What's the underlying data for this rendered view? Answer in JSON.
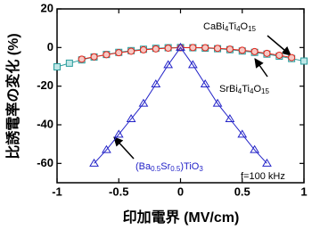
{
  "chart_data": {
    "type": "line",
    "xlabel": "印加電界 (MV/cm)",
    "ylabel": "比誘電率の変化 (%)",
    "xlim": [
      -1,
      1
    ],
    "xticks": [
      -1,
      -0.5,
      0,
      0.5,
      1
    ],
    "ylim": [
      -70,
      20
    ],
    "yticks": [
      -60,
      -40,
      -20,
      0,
      20
    ],
    "series": [
      {
        "name": "CaBi4Ti4O15",
        "color": "#2a9d9d",
        "marker": "square",
        "x": [
          -1,
          -0.9,
          -0.8,
          -0.7,
          -0.6,
          -0.5,
          -0.4,
          -0.3,
          -0.2,
          -0.1,
          0,
          0.1,
          0.2,
          0.3,
          0.4,
          0.5,
          0.6,
          0.7,
          0.8,
          0.9,
          1
        ],
        "values": [
          -10,
          -8.1,
          -6.4,
          -4.9,
          -3.6,
          -2.5,
          -1.6,
          -0.9,
          -0.4,
          -0.1,
          0,
          -0.1,
          -0.3,
          -0.6,
          -1.1,
          -1.8,
          -2.5,
          -3.4,
          -4.5,
          -5.7,
          -7
        ]
      },
      {
        "name": "SrBi4Ti4O15",
        "color": "#e0261c",
        "marker": "circle",
        "x": [
          -0.8,
          -0.7,
          -0.6,
          -0.5,
          -0.4,
          -0.3,
          -0.2,
          -0.1,
          0,
          0.1,
          0.2,
          0.3,
          0.4,
          0.5,
          0.6,
          0.7,
          0.8,
          0.9
        ],
        "values": [
          -6,
          -4.8,
          -3.7,
          -2.7,
          -1.9,
          -1.2,
          -0.7,
          -0.3,
          -0.1,
          0,
          -0.1,
          -0.4,
          -0.8,
          -1.4,
          -2.1,
          -3,
          -4,
          -5.2
        ]
      },
      {
        "name": "(Ba0.5Sr0.5)TiO3",
        "color": "#2323c8",
        "marker": "triangle",
        "x": [
          -0.7,
          -0.6,
          -0.5,
          -0.4,
          -0.3,
          -0.2,
          -0.1,
          0,
          0.1,
          0.2,
          0.3,
          0.4,
          0.5,
          0.6,
          0.7
        ],
        "values": [
          -60,
          -53,
          -45,
          -37,
          -29,
          -19,
          -9,
          0,
          -9,
          -19,
          -29,
          -37,
          -45,
          -53,
          -60
        ]
      }
    ],
    "annotations": [
      {
        "parts": [
          "CaBi",
          "4",
          "Ti",
          "4",
          "O",
          "15"
        ]
      },
      {
        "parts": [
          "SrBi",
          "4",
          "Ti",
          "4",
          "O",
          "15"
        ]
      },
      {
        "parts": [
          "(Ba",
          "0.5",
          "Sr",
          "0.5",
          ")TiO",
          "3"
        ]
      },
      {
        "parts": [
          "f=100 kHz"
        ]
      }
    ]
  }
}
